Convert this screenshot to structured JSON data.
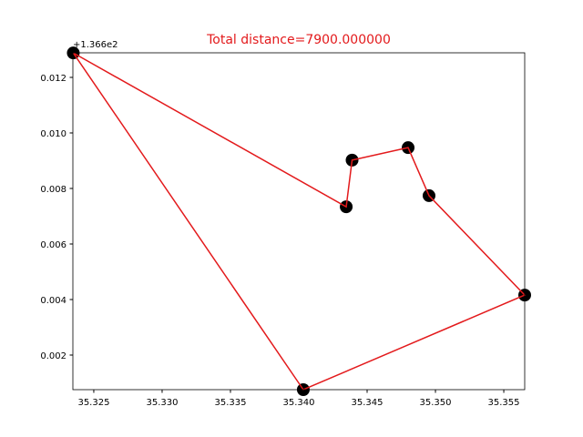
{
  "chart_data": {
    "type": "scatter",
    "title": "Total distance=7900.000000",
    "y_offset_label": "+1.366e2",
    "series": [
      {
        "type": "scatter",
        "color": "#000000",
        "x": [
          35.3235,
          35.34347,
          35.3439,
          35.348,
          35.34953,
          35.35653,
          35.34033
        ],
        "y": [
          0.01288,
          0.00734,
          0.00902,
          0.00947,
          0.00774,
          0.00416,
          0.000754
        ]
      },
      {
        "type": "line",
        "color": "#e31a1c",
        "x": [
          35.3235,
          35.34347,
          35.3439,
          35.348,
          35.34953,
          35.35653,
          35.34033,
          35.3235
        ],
        "y": [
          0.01288,
          0.00734,
          0.00902,
          0.00947,
          0.00774,
          0.00416,
          0.000754,
          0.01288
        ]
      }
    ],
    "xlim": [
      35.32347,
      35.35653
    ],
    "ylim": [
      0.000754,
      0.012885
    ],
    "xticks": [
      35.325,
      {
        "value": 35.33,
        "label": "35.330"
      },
      35.335,
      {
        "value": 35.34,
        "label": "35.340"
      },
      35.345,
      {
        "value": 35.35,
        "label": "35.350"
      },
      35.355
    ],
    "yticks": [
      0.002,
      0.004,
      0.006,
      0.008,
      {
        "value": 0.01,
        "label": "0.010"
      },
      0.012
    ]
  }
}
